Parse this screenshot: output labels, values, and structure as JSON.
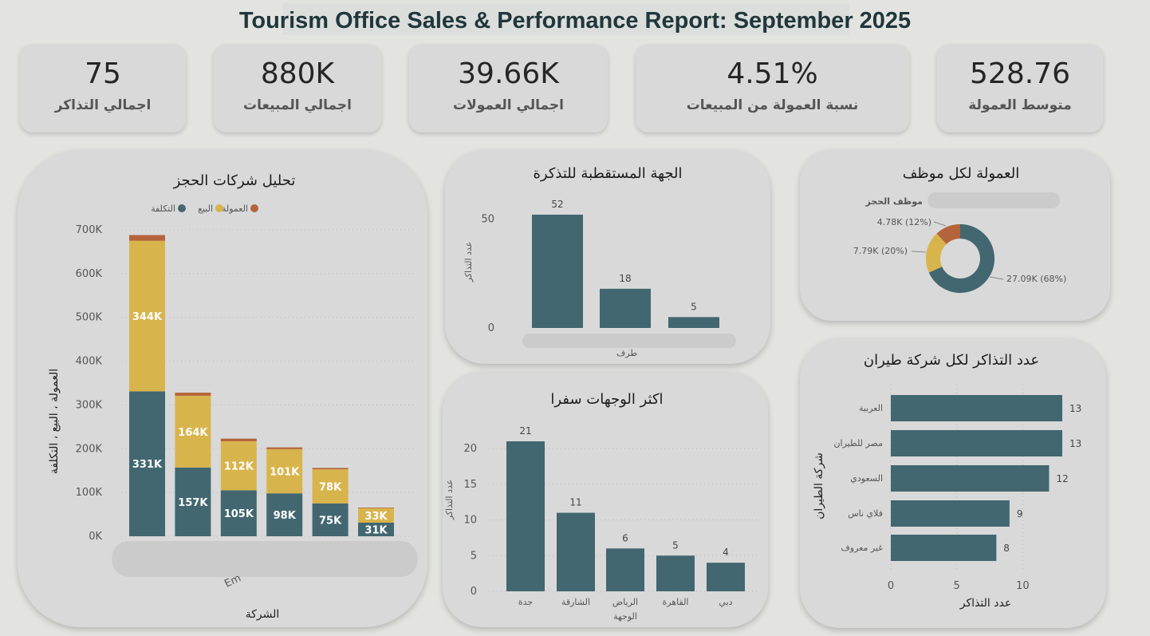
{
  "title": "Tourism Office Sales & Performance Report: September 2025",
  "colors": {
    "cost": "#426770",
    "sale": "#d8b44c",
    "commission": "#b4643b",
    "bar": "#426770"
  },
  "kpis": [
    {
      "value": "75",
      "label": "اجمالي التذاكر"
    },
    {
      "value": "880K",
      "label": "اجمالي المبيعات"
    },
    {
      "value": "39.66K",
      "label": "اجمالي العمولات"
    },
    {
      "value": "4.51%",
      "label": "نسبة العمولة من المبيعات"
    },
    {
      "value": "528.76",
      "label": "متوسط العمولة"
    }
  ],
  "booking": {
    "title": "تحليل شركات الحجز",
    "xlabel": "الشركة",
    "ylabel": "العمولة ، البيع ، التكلفة",
    "partial_tick_label": "Em",
    "legend": [
      {
        "name": "العمولة",
        "color": "#b4643b"
      },
      {
        "name": "البيع",
        "color": "#d8b44c"
      },
      {
        "name": "التكلفة",
        "color": "#426770"
      }
    ]
  },
  "polarized": {
    "title": "الجهة المستقطبة للتذكرة",
    "xlabel": "طرف",
    "ylabel": "عدد التذاكر"
  },
  "destinations": {
    "title": "اكثر الوجهات سفرا",
    "xlabel": "الوجهة",
    "ylabel": "عدد التذاكر"
  },
  "employee": {
    "title": "العمولة لكل موظف",
    "legend_label": "موظف الحجز"
  },
  "airlines": {
    "title": "عدد التذاكر لكل شركة طيران",
    "xlabel": "عدد التذاكر",
    "ylabel": "شركة الطيران"
  },
  "chart_data": [
    {
      "type": "bar",
      "stacked": true,
      "title": "تحليل شركات الحجز",
      "xlabel": "الشركة",
      "ylabel": "العمولة ، البيع ، التكلفة",
      "categories": [
        "",
        "",
        "",
        "",
        "",
        ""
      ],
      "series": [
        {
          "name": "التكلفة",
          "values": [
            331000,
            157000,
            105000,
            98000,
            75000,
            31000
          ],
          "labels": [
            "331K",
            "157K",
            "105K",
            "98K",
            "75K",
            "31K"
          ]
        },
        {
          "name": "البيع",
          "values": [
            344000,
            164000,
            112000,
            101000,
            78000,
            33000
          ],
          "labels": [
            "344K",
            "164K",
            "112K",
            "101K",
            "78K",
            "33K"
          ]
        },
        {
          "name": "العمولة",
          "values": [
            13000,
            7000,
            6000,
            4000,
            3000,
            1500
          ]
        }
      ],
      "ylim": [
        0,
        700000
      ],
      "yticks": [
        "0K",
        "100K",
        "200K",
        "300K",
        "400K",
        "500K",
        "600K",
        "700K"
      ],
      "legend_position": "top-center",
      "grid": true
    },
    {
      "type": "bar",
      "title": "الجهة المستقطبة للتذكرة",
      "xlabel": "طرف",
      "ylabel": "عدد التذاكر",
      "categories": [
        "",
        "",
        ""
      ],
      "values": [
        52,
        18,
        5
      ],
      "ylim": [
        0,
        55
      ],
      "yticks": [
        "0",
        "50"
      ]
    },
    {
      "type": "bar",
      "title": "اكثر الوجهات سفرا",
      "xlabel": "الوجهة",
      "ylabel": "عدد التذاكر",
      "categories": [
        "جدة",
        "الشارقة",
        "الرياض",
        "القاهرة",
        "دبي"
      ],
      "values": [
        21,
        11,
        6,
        5,
        4
      ],
      "ylim": [
        0,
        22
      ],
      "yticks": [
        "0",
        "5",
        "10",
        "15",
        "20"
      ],
      "grid": true
    },
    {
      "type": "pie",
      "donut": true,
      "title": "العمولة لكل موظف",
      "legend_title": "موظف الحجز",
      "values": [
        27090,
        7790,
        4780
      ],
      "labels": [
        "27.09K (68%)",
        "7.79K (20%)",
        "4.78K (12%)"
      ],
      "colors": [
        "#426770",
        "#d8b44c",
        "#b4643b"
      ]
    },
    {
      "type": "bar",
      "orientation": "horizontal",
      "title": "عدد التذاكر لكل شركة طيران",
      "xlabel": "عدد التذاكر",
      "ylabel": "شركة الطيران",
      "categories": [
        "العربية",
        "مصر للطيران",
        "السعودي",
        "فلاي ناس",
        "غير معروف"
      ],
      "values": [
        13,
        13,
        12,
        9,
        8
      ],
      "xlim": [
        0,
        14
      ],
      "xticks": [
        "0",
        "5",
        "10"
      ],
      "grid": true
    }
  ]
}
